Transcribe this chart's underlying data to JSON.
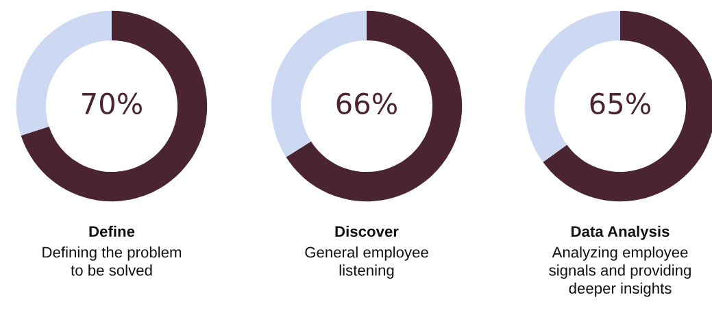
{
  "chart_data": [
    {
      "type": "donut",
      "title": "Define",
      "subtitle": "Defining the problem\nto be solved",
      "categories": [
        null,
        null
      ],
      "values": [
        70,
        30
      ],
      "colors": [
        "#4a2530",
        "#cdd9f3"
      ],
      "value_labels": [
        "70%",
        null
      ]
    },
    {
      "type": "donut",
      "title": "Discover",
      "subtitle": "General employee\nlistening",
      "categories": [
        null,
        null
      ],
      "values": [
        66,
        34
      ],
      "colors": [
        "#4a2530",
        "#cdd9f3"
      ],
      "value_labels": [
        "66%",
        null
      ]
    },
    {
      "type": "donut",
      "title": "Data Analysis",
      "subtitle": "Analyzing employee\nsignals and providing\ndeeper insights",
      "categories": [
        null,
        null
      ],
      "values": [
        65,
        35
      ],
      "colors": [
        "#4a2530",
        "#cdd9f3"
      ],
      "value_labels": [
        "65%",
        null
      ]
    }
  ]
}
